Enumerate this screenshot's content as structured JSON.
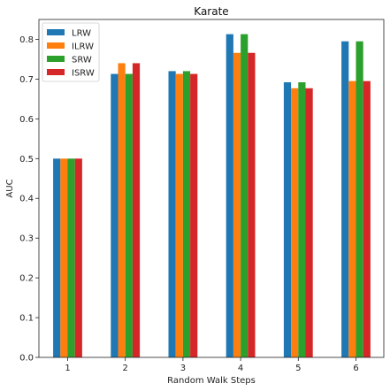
{
  "chart_data": {
    "type": "bar",
    "title": "Karate",
    "xlabel": "Random Walk Steps",
    "ylabel": "AUC",
    "categories": [
      "1",
      "2",
      "3",
      "4",
      "5",
      "6"
    ],
    "series": [
      {
        "name": "LRW",
        "color": "#1f77b4",
        "values": [
          0.5,
          0.713,
          0.72,
          0.813,
          0.692,
          0.795
        ]
      },
      {
        "name": "ILRW",
        "color": "#ff7f0e",
        "values": [
          0.5,
          0.74,
          0.713,
          0.766,
          0.677,
          0.695
        ]
      },
      {
        "name": "SRW",
        "color": "#2ca02c",
        "values": [
          0.5,
          0.713,
          0.72,
          0.813,
          0.692,
          0.795
        ]
      },
      {
        "name": "ISRW",
        "color": "#d62728",
        "values": [
          0.5,
          0.74,
          0.713,
          0.766,
          0.677,
          0.695
        ]
      }
    ],
    "ylim": [
      0,
      0.85
    ],
    "yticks": [
      0.0,
      0.1,
      0.2,
      0.3,
      0.4,
      0.5,
      0.6,
      0.7,
      0.8
    ],
    "ytick_labels": [
      "0.0",
      "0.1",
      "0.2",
      "0.3",
      "0.4",
      "0.5",
      "0.6",
      "0.7",
      "0.8"
    ],
    "grid": false,
    "legend_position": "top-left"
  }
}
